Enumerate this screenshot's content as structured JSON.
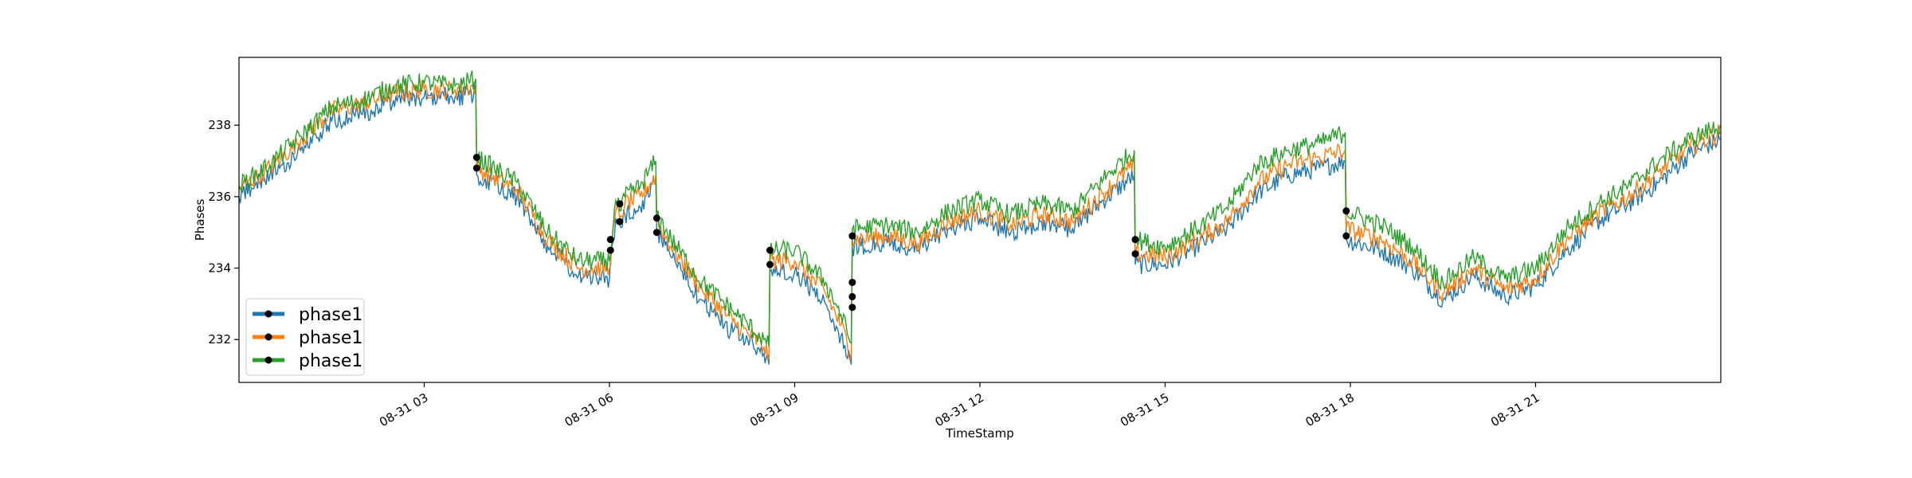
{
  "chart_data": {
    "type": "line",
    "title": "",
    "xlabel": "TimeStamp",
    "ylabel": "Phases",
    "xlim": [
      "2021-08-31 00:00",
      "2021-08-31 24:00"
    ],
    "ylim": [
      230.8,
      239.9
    ],
    "x_ticks": [
      "2021-08-31 03:00",
      "2021-08-31 06:00",
      "2021-08-31 09:00",
      "2021-08-31 12:00",
      "2021-08-31 15:00",
      "2021-08-31 18:00",
      "2021-08-31 21:00"
    ],
    "x_tick_labels": [
      "08-31 03",
      "08-31 06",
      "08-31 09",
      "08-31 12",
      "08-31 15",
      "08-31 18",
      "08-31 21"
    ],
    "y_ticks": [
      232,
      234,
      236,
      238
    ],
    "y_tick_labels": [
      "232",
      "234",
      "236",
      "238"
    ],
    "legend_position": "lower-left",
    "grid": false,
    "series": [
      {
        "name": "phase1",
        "color": "#1f77b4",
        "x": [
          "2021-08-31 00:00",
          "2021-08-31 00:30",
          "2021-08-31 01:00",
          "2021-08-31 01:30",
          "2021-08-31 02:00",
          "2021-08-31 02:30",
          "2021-08-31 03:00",
          "2021-08-31 03:30",
          "2021-08-31 03:50",
          "2021-08-31 03:51",
          "2021-08-31 04:30",
          "2021-08-31 05:00",
          "2021-08-31 05:30",
          "2021-08-31 06:00",
          "2021-08-31 06:06",
          "2021-08-31 06:10",
          "2021-08-31 06:15",
          "2021-08-31 06:30",
          "2021-08-31 06:45",
          "2021-08-31 06:46",
          "2021-08-31 07:00",
          "2021-08-31 07:30",
          "2021-08-31 08:00",
          "2021-08-31 08:30",
          "2021-08-31 08:35",
          "2021-08-31 08:36",
          "2021-08-31 09:00",
          "2021-08-31 09:30",
          "2021-08-31 09:45",
          "2021-08-31 09:55",
          "2021-08-31 09:56",
          "2021-08-31 10:30",
          "2021-08-31 11:00",
          "2021-08-31 11:30",
          "2021-08-31 12:00",
          "2021-08-31 12:30",
          "2021-08-31 13:00",
          "2021-08-31 13:30",
          "2021-08-31 14:00",
          "2021-08-31 14:30",
          "2021-08-31 14:31",
          "2021-08-31 15:00",
          "2021-08-31 15:30",
          "2021-08-31 16:00",
          "2021-08-31 16:30",
          "2021-08-31 17:00",
          "2021-08-31 17:30",
          "2021-08-31 17:55",
          "2021-08-31 17:56",
          "2021-08-31 18:30",
          "2021-08-31 19:00",
          "2021-08-31 19:30",
          "2021-08-31 20:00",
          "2021-08-31 20:30",
          "2021-08-31 21:00",
          "2021-08-31 21:30",
          "2021-08-31 22:00",
          "2021-08-31 22:30",
          "2021-08-31 23:00",
          "2021-08-31 23:30",
          "2021-08-31 24:00"
        ],
        "values": [
          236.0,
          236.6,
          237.3,
          238.1,
          238.3,
          238.7,
          238.8,
          238.8,
          238.9,
          236.6,
          236.0,
          234.6,
          233.8,
          233.7,
          235.4,
          235.2,
          235.5,
          235.7,
          236.4,
          235.0,
          234.3,
          233.1,
          232.2,
          231.6,
          231.3,
          233.9,
          233.9,
          233.0,
          232.1,
          231.3,
          234.6,
          234.7,
          234.5,
          235.1,
          235.4,
          235.0,
          235.3,
          235.1,
          235.9,
          236.6,
          234.1,
          234.1,
          234.6,
          235.1,
          236.1,
          236.6,
          236.8,
          237.0,
          234.8,
          234.5,
          234.0,
          233.1,
          233.8,
          233.2,
          233.5,
          234.5,
          235.3,
          235.8,
          236.4,
          237.2,
          237.6
        ]
      },
      {
        "name": "phase1",
        "color": "#ff7f0e",
        "x": [
          "2021-08-31 00:00",
          "2021-08-31 00:30",
          "2021-08-31 01:00",
          "2021-08-31 01:30",
          "2021-08-31 02:00",
          "2021-08-31 02:30",
          "2021-08-31 03:00",
          "2021-08-31 03:30",
          "2021-08-31 03:50",
          "2021-08-31 03:51",
          "2021-08-31 04:30",
          "2021-08-31 05:00",
          "2021-08-31 05:30",
          "2021-08-31 06:00",
          "2021-08-31 06:06",
          "2021-08-31 06:10",
          "2021-08-31 06:15",
          "2021-08-31 06:30",
          "2021-08-31 06:45",
          "2021-08-31 06:46",
          "2021-08-31 07:00",
          "2021-08-31 07:30",
          "2021-08-31 08:00",
          "2021-08-31 08:30",
          "2021-08-31 08:35",
          "2021-08-31 08:36",
          "2021-08-31 09:00",
          "2021-08-31 09:30",
          "2021-08-31 09:45",
          "2021-08-31 09:55",
          "2021-08-31 09:56",
          "2021-08-31 10:30",
          "2021-08-31 11:00",
          "2021-08-31 11:30",
          "2021-08-31 12:00",
          "2021-08-31 12:30",
          "2021-08-31 13:00",
          "2021-08-31 13:30",
          "2021-08-31 14:00",
          "2021-08-31 14:30",
          "2021-08-31 14:31",
          "2021-08-31 15:00",
          "2021-08-31 15:30",
          "2021-08-31 16:00",
          "2021-08-31 16:30",
          "2021-08-31 17:00",
          "2021-08-31 17:30",
          "2021-08-31 17:55",
          "2021-08-31 17:56",
          "2021-08-31 18:30",
          "2021-08-31 19:00",
          "2021-08-31 19:30",
          "2021-08-31 20:00",
          "2021-08-31 20:30",
          "2021-08-31 21:00",
          "2021-08-31 21:30",
          "2021-08-31 22:00",
          "2021-08-31 22:30",
          "2021-08-31 23:00",
          "2021-08-31 23:30",
          "2021-08-31 24:00"
        ],
        "values": [
          236.2,
          236.8,
          237.6,
          238.4,
          238.6,
          238.9,
          239.0,
          239.0,
          239.1,
          236.8,
          236.2,
          234.8,
          234.0,
          234.0,
          235.6,
          235.4,
          235.8,
          236.0,
          236.6,
          235.3,
          234.6,
          233.4,
          232.5,
          231.8,
          231.5,
          234.2,
          234.2,
          233.3,
          232.4,
          231.6,
          234.8,
          234.9,
          234.7,
          235.3,
          235.6,
          235.2,
          235.5,
          235.3,
          236.1,
          236.9,
          234.4,
          234.3,
          234.8,
          235.3,
          236.4,
          236.9,
          237.1,
          237.3,
          235.1,
          234.8,
          234.2,
          233.3,
          234.0,
          233.4,
          233.7,
          234.8,
          235.5,
          236.0,
          236.7,
          237.4,
          237.8
        ]
      },
      {
        "name": "phase1",
        "color": "#2ca02c",
        "x": [
          "2021-08-31 00:00",
          "2021-08-31 00:30",
          "2021-08-31 01:00",
          "2021-08-31 01:30",
          "2021-08-31 02:00",
          "2021-08-31 02:30",
          "2021-08-31 03:00",
          "2021-08-31 03:30",
          "2021-08-31 03:50",
          "2021-08-31 03:51",
          "2021-08-31 04:30",
          "2021-08-31 05:00",
          "2021-08-31 05:30",
          "2021-08-31 06:00",
          "2021-08-31 06:06",
          "2021-08-31 06:10",
          "2021-08-31 06:15",
          "2021-08-31 06:30",
          "2021-08-31 06:45",
          "2021-08-31 06:46",
          "2021-08-31 07:00",
          "2021-08-31 07:30",
          "2021-08-31 08:00",
          "2021-08-31 08:30",
          "2021-08-31 08:35",
          "2021-08-31 08:36",
          "2021-08-31 09:00",
          "2021-08-31 09:30",
          "2021-08-31 09:45",
          "2021-08-31 09:55",
          "2021-08-31 09:56",
          "2021-08-31 10:30",
          "2021-08-31 11:00",
          "2021-08-31 11:30",
          "2021-08-31 12:00",
          "2021-08-31 12:30",
          "2021-08-31 13:00",
          "2021-08-31 13:30",
          "2021-08-31 14:00",
          "2021-08-31 14:30",
          "2021-08-31 14:31",
          "2021-08-31 15:00",
          "2021-08-31 15:30",
          "2021-08-31 16:00",
          "2021-08-31 16:30",
          "2021-08-31 17:00",
          "2021-08-31 17:30",
          "2021-08-31 17:55",
          "2021-08-31 17:56",
          "2021-08-31 18:30",
          "2021-08-31 19:00",
          "2021-08-31 19:30",
          "2021-08-31 20:00",
          "2021-08-31 20:30",
          "2021-08-31 21:00",
          "2021-08-31 21:30",
          "2021-08-31 22:00",
          "2021-08-31 22:30",
          "2021-08-31 23:00",
          "2021-08-31 23:30",
          "2021-08-31 24:00"
        ],
        "values": [
          236.3,
          236.9,
          237.7,
          238.5,
          238.7,
          239.1,
          239.2,
          239.1,
          239.3,
          237.1,
          236.4,
          235.0,
          234.2,
          234.2,
          235.9,
          235.6,
          236.0,
          236.3,
          237.0,
          235.5,
          234.8,
          233.6,
          232.8,
          232.0,
          231.8,
          234.5,
          234.5,
          233.6,
          232.7,
          231.9,
          235.1,
          235.2,
          235.0,
          235.6,
          235.9,
          235.5,
          235.8,
          235.6,
          236.5,
          237.3,
          234.8,
          234.6,
          235.1,
          235.7,
          236.9,
          237.3,
          237.5,
          237.8,
          235.6,
          235.2,
          234.6,
          233.6,
          234.3,
          233.7,
          234.0,
          235.1,
          235.8,
          236.3,
          237.0,
          237.6,
          238.0
        ]
      }
    ],
    "markers": {
      "x": [
        "2021-08-31 03:51",
        "2021-08-31 03:51",
        "2021-08-31 06:01",
        "2021-08-31 06:01",
        "2021-08-31 06:10",
        "2021-08-31 06:10",
        "2021-08-31 06:46",
        "2021-08-31 06:46",
        "2021-08-31 08:36",
        "2021-08-31 08:36",
        "2021-08-31 09:56",
        "2021-08-31 09:56",
        "2021-08-31 09:56",
        "2021-08-31 09:56",
        "2021-08-31 14:31",
        "2021-08-31 14:31",
        "2021-08-31 17:56",
        "2021-08-31 17:56"
      ],
      "values": [
        236.8,
        237.1,
        234.5,
        234.8,
        235.3,
        235.8,
        235.0,
        235.4,
        234.1,
        234.5,
        232.9,
        233.2,
        233.6,
        234.9,
        234.4,
        234.8,
        234.9,
        235.6
      ],
      "color": "#000000"
    }
  },
  "legend": {
    "entries": [
      {
        "label": "phase1",
        "color": "#1f77b4"
      },
      {
        "label": "phase1",
        "color": "#ff7f0e"
      },
      {
        "label": "phase1",
        "color": "#2ca02c"
      }
    ]
  }
}
